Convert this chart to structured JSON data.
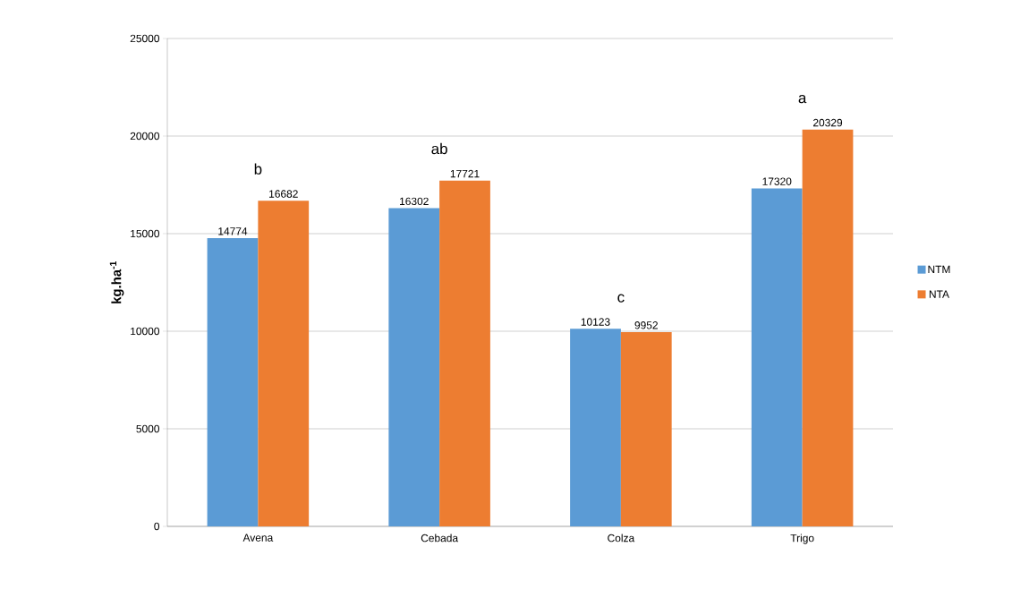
{
  "chart_data": {
    "type": "bar",
    "ylabel": "kg.ha$^{-1}$",
    "categories": [
      "Avena",
      "Cebada",
      "Colza",
      "Trigo"
    ],
    "series": [
      {
        "name": "NTM",
        "color": "#5b9bd5",
        "values": [
          14774,
          16302,
          10123,
          17320
        ]
      },
      {
        "name": "NTA",
        "color": "#ed7d31",
        "values": [
          16682,
          17721,
          9952,
          20329
        ]
      }
    ],
    "ylim": [
      0,
      25000
    ],
    "yticks": [
      0,
      5000,
      10000,
      15000,
      20000,
      25000
    ],
    "grid": "y",
    "legend": "right",
    "data_labels": true,
    "annotations": [
      "b",
      "ab",
      "c",
      "a"
    ]
  }
}
